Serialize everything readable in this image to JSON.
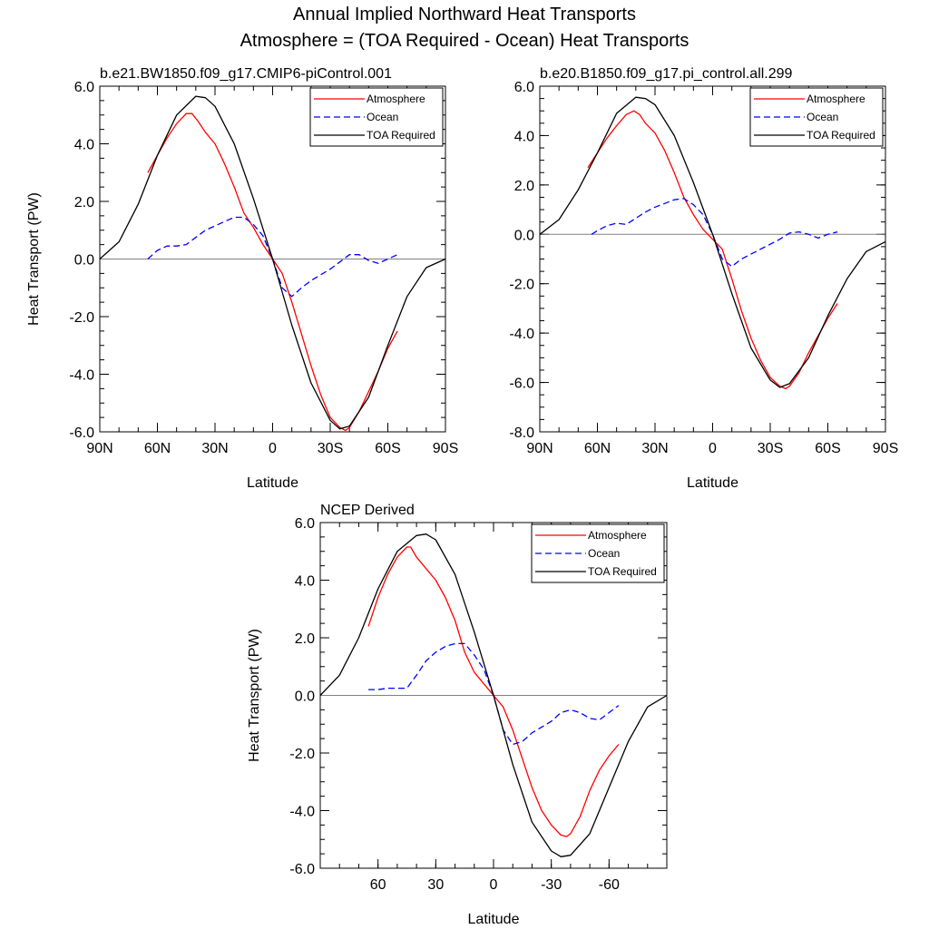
{
  "figure": {
    "title_line1": "Annual Implied Northward Heat Transports",
    "title_line2": "Atmosphere = (TOA Required - Ocean) Heat Transports"
  },
  "colors": {
    "atmosphere": "#ff0000",
    "ocean": "#0000ff",
    "toa": "#000000",
    "zero_line": "#808080"
  },
  "legend": {
    "placement": "top-right",
    "atmosphere": "Atmosphere",
    "ocean": "Ocean",
    "toa": "TOA Required"
  },
  "chart_data": [
    {
      "type": "line",
      "title": "b.e21.BW1850.f09_g17.CMIP6-piControl.001",
      "xlabel": "Latitude",
      "ylabel": "Heat Transport (PW)",
      "x_direction": "north-to-south",
      "xlim": [
        90,
        -90
      ],
      "ylim": [
        -6.0,
        6.0
      ],
      "xticks": [
        90,
        60,
        30,
        0,
        -30,
        -60,
        -90
      ],
      "xtick_labels": [
        "90N",
        "60N",
        "30N",
        "0",
        "30S",
        "60S",
        "90S"
      ],
      "yticks": [
        -6,
        -4,
        -2,
        0,
        2,
        4,
        6
      ],
      "ytick_labels": [
        "-6.0",
        "-4.0",
        "-2.0",
        "0.0",
        "2.0",
        "4.0",
        "6.0"
      ],
      "zero_line": true,
      "legend": [
        "Atmosphere",
        "Ocean",
        "TOA Required"
      ],
      "series": [
        {
          "name": "Atmosphere",
          "style": "solid",
          "color": "#ff0000",
          "x": [
            65,
            60,
            55,
            50,
            45,
            42,
            39,
            35,
            30,
            25,
            20,
            15,
            10,
            5,
            0,
            -5,
            -10,
            -15,
            -20,
            -25,
            -30,
            -35,
            -38,
            -40,
            -45,
            -50,
            -55,
            -60,
            -65
          ],
          "y": [
            3.0,
            3.6,
            4.2,
            4.7,
            5.05,
            5.05,
            4.8,
            4.4,
            4.0,
            3.3,
            2.5,
            1.6,
            1.1,
            0.5,
            0.0,
            -0.5,
            -1.5,
            -2.6,
            -3.7,
            -4.7,
            -5.5,
            -5.85,
            -5.95,
            -5.85,
            -5.3,
            -4.6,
            -3.9,
            -3.1,
            -2.5
          ]
        },
        {
          "name": "Ocean",
          "style": "dashed",
          "color": "#0000ff",
          "x": [
            65,
            60,
            55,
            50,
            45,
            40,
            35,
            30,
            25,
            20,
            15,
            10,
            5,
            0,
            -5,
            -10,
            -15,
            -20,
            -25,
            -30,
            -35,
            -40,
            -45,
            -50,
            -55,
            -60,
            -65
          ],
          "y": [
            0.0,
            0.3,
            0.45,
            0.45,
            0.5,
            0.75,
            1.0,
            1.15,
            1.3,
            1.45,
            1.45,
            1.2,
            0.8,
            0.0,
            -1.0,
            -1.3,
            -1.0,
            -0.75,
            -0.55,
            -0.35,
            -0.1,
            0.15,
            0.15,
            -0.05,
            -0.15,
            0.0,
            0.15
          ]
        },
        {
          "name": "TOA Required",
          "style": "solid",
          "color": "#000000",
          "x": [
            90,
            80,
            70,
            60,
            50,
            40,
            35,
            30,
            20,
            10,
            0,
            -10,
            -20,
            -30,
            -35,
            -40,
            -50,
            -60,
            -70,
            -80,
            -90
          ],
          "y": [
            0.0,
            0.6,
            1.9,
            3.6,
            5.0,
            5.65,
            5.6,
            5.3,
            4.0,
            2.1,
            0.0,
            -2.3,
            -4.3,
            -5.6,
            -5.9,
            -5.8,
            -4.8,
            -3.0,
            -1.3,
            -0.3,
            0.0
          ]
        }
      ]
    },
    {
      "type": "line",
      "title": "b.e20.B1850.f09_g17.pi_control.all.299",
      "xlabel": "Latitude",
      "ylabel": "",
      "x_direction": "north-to-south",
      "xlim": [
        90,
        -90
      ],
      "ylim": [
        -8.0,
        6.0
      ],
      "xticks": [
        90,
        60,
        30,
        0,
        -30,
        -60,
        -90
      ],
      "xtick_labels": [
        "90N",
        "60N",
        "30N",
        "0",
        "30S",
        "60S",
        "90S"
      ],
      "yticks": [
        -8,
        -6,
        -4,
        -2,
        0,
        2,
        4,
        6
      ],
      "ytick_labels": [
        "-8.0",
        "-6.0",
        "-4.0",
        "-2.0",
        "0.0",
        "2.0",
        "4.0",
        "6.0"
      ],
      "zero_line": true,
      "legend": [
        "Atmosphere",
        "Ocean",
        "TOA Required"
      ],
      "series": [
        {
          "name": "Atmosphere",
          "style": "solid",
          "color": "#ff0000",
          "x": [
            65,
            60,
            55,
            50,
            45,
            41,
            38,
            35,
            30,
            25,
            20,
            15,
            10,
            5,
            0,
            -5,
            -10,
            -15,
            -20,
            -25,
            -30,
            -35,
            -38,
            -40,
            -45,
            -50,
            -55,
            -60,
            -65
          ],
          "y": [
            2.7,
            3.3,
            3.9,
            4.4,
            4.85,
            5.0,
            4.85,
            4.5,
            4.1,
            3.4,
            2.5,
            1.5,
            0.8,
            0.2,
            -0.2,
            -0.6,
            -1.8,
            -3.1,
            -4.2,
            -5.1,
            -5.8,
            -6.15,
            -6.25,
            -6.15,
            -5.6,
            -4.8,
            -4.1,
            -3.4,
            -2.8
          ]
        },
        {
          "name": "Ocean",
          "style": "dashed",
          "color": "#0000ff",
          "x": [
            63,
            60,
            55,
            50,
            45,
            40,
            35,
            30,
            25,
            20,
            15,
            10,
            5,
            0,
            -5,
            -10,
            -15,
            -20,
            -25,
            -30,
            -35,
            -40,
            -45,
            -50,
            -55,
            -60,
            -65
          ],
          "y": [
            0.0,
            0.15,
            0.35,
            0.45,
            0.4,
            0.65,
            0.9,
            1.1,
            1.25,
            1.4,
            1.45,
            1.2,
            0.8,
            0.0,
            -1.0,
            -1.3,
            -1.0,
            -0.8,
            -0.6,
            -0.4,
            -0.2,
            0.05,
            0.1,
            0.0,
            -0.15,
            0.0,
            0.1
          ]
        },
        {
          "name": "TOA Required",
          "style": "solid",
          "color": "#000000",
          "x": [
            90,
            80,
            70,
            60,
            50,
            40,
            35,
            30,
            20,
            10,
            0,
            -10,
            -20,
            -30,
            -35,
            -40,
            -50,
            -60,
            -70,
            -80,
            -90
          ],
          "y": [
            0.0,
            0.6,
            1.8,
            3.3,
            4.9,
            5.55,
            5.5,
            5.25,
            4.0,
            2.1,
            0.0,
            -2.4,
            -4.6,
            -5.9,
            -6.2,
            -6.05,
            -5.0,
            -3.3,
            -1.8,
            -0.7,
            -0.3
          ]
        }
      ]
    },
    {
      "type": "line",
      "title": "NCEP Derived",
      "xlabel": "Latitude",
      "ylabel": "Heat Transport (PW)",
      "x_direction": "north-to-south",
      "xlim": [
        90,
        -90
      ],
      "ylim": [
        -6.0,
        6.0
      ],
      "xticks": [
        60,
        30,
        0,
        -30,
        -60
      ],
      "xtick_labels": [
        "60",
        "30",
        "0",
        "-30",
        "-60"
      ],
      "yticks": [
        -6,
        -4,
        -2,
        0,
        2,
        4,
        6
      ],
      "ytick_labels": [
        "-6.0",
        "-4.0",
        "-2.0",
        "0.0",
        "2.0",
        "4.0",
        "6.0"
      ],
      "zero_line": true,
      "legend": [
        "Atmosphere",
        "Ocean",
        "TOA Required"
      ],
      "series": [
        {
          "name": "Atmosphere",
          "style": "solid",
          "color": "#ff0000",
          "x": [
            65,
            60,
            55,
            50,
            45,
            43,
            40,
            35,
            30,
            25,
            20,
            15,
            10,
            5,
            0,
            -5,
            -10,
            -15,
            -20,
            -25,
            -30,
            -35,
            -38,
            -40,
            -45,
            -50,
            -55,
            -60,
            -65
          ],
          "y": [
            2.4,
            3.4,
            4.2,
            4.8,
            5.15,
            5.15,
            4.8,
            4.4,
            4.0,
            3.4,
            2.6,
            1.5,
            0.8,
            0.4,
            0.0,
            -0.4,
            -1.2,
            -2.2,
            -3.2,
            -4.0,
            -4.5,
            -4.85,
            -4.9,
            -4.8,
            -4.2,
            -3.3,
            -2.6,
            -2.1,
            -1.7
          ]
        },
        {
          "name": "Ocean",
          "style": "dashed",
          "color": "#0000ff",
          "x": [
            65,
            60,
            55,
            50,
            45,
            40,
            35,
            30,
            25,
            20,
            15,
            10,
            5,
            0,
            -5,
            -10,
            -15,
            -20,
            -25,
            -30,
            -35,
            -40,
            -45,
            -50,
            -55,
            -60,
            -65
          ],
          "y": [
            0.2,
            0.2,
            0.25,
            0.25,
            0.25,
            0.7,
            1.2,
            1.5,
            1.7,
            1.8,
            1.8,
            1.4,
            0.9,
            0.0,
            -1.2,
            -1.7,
            -1.6,
            -1.3,
            -1.1,
            -0.9,
            -0.6,
            -0.5,
            -0.6,
            -0.8,
            -0.85,
            -0.6,
            -0.35
          ]
        },
        {
          "name": "TOA Required",
          "style": "solid",
          "color": "#000000",
          "x": [
            90,
            80,
            70,
            60,
            50,
            40,
            35,
            30,
            20,
            10,
            0,
            -10,
            -20,
            -30,
            -35,
            -40,
            -50,
            -60,
            -70,
            -80,
            -90
          ],
          "y": [
            0.0,
            0.7,
            2.0,
            3.7,
            5.0,
            5.55,
            5.6,
            5.4,
            4.2,
            2.2,
            0.0,
            -2.4,
            -4.4,
            -5.4,
            -5.6,
            -5.55,
            -4.8,
            -3.2,
            -1.6,
            -0.4,
            0.0
          ]
        }
      ]
    }
  ]
}
